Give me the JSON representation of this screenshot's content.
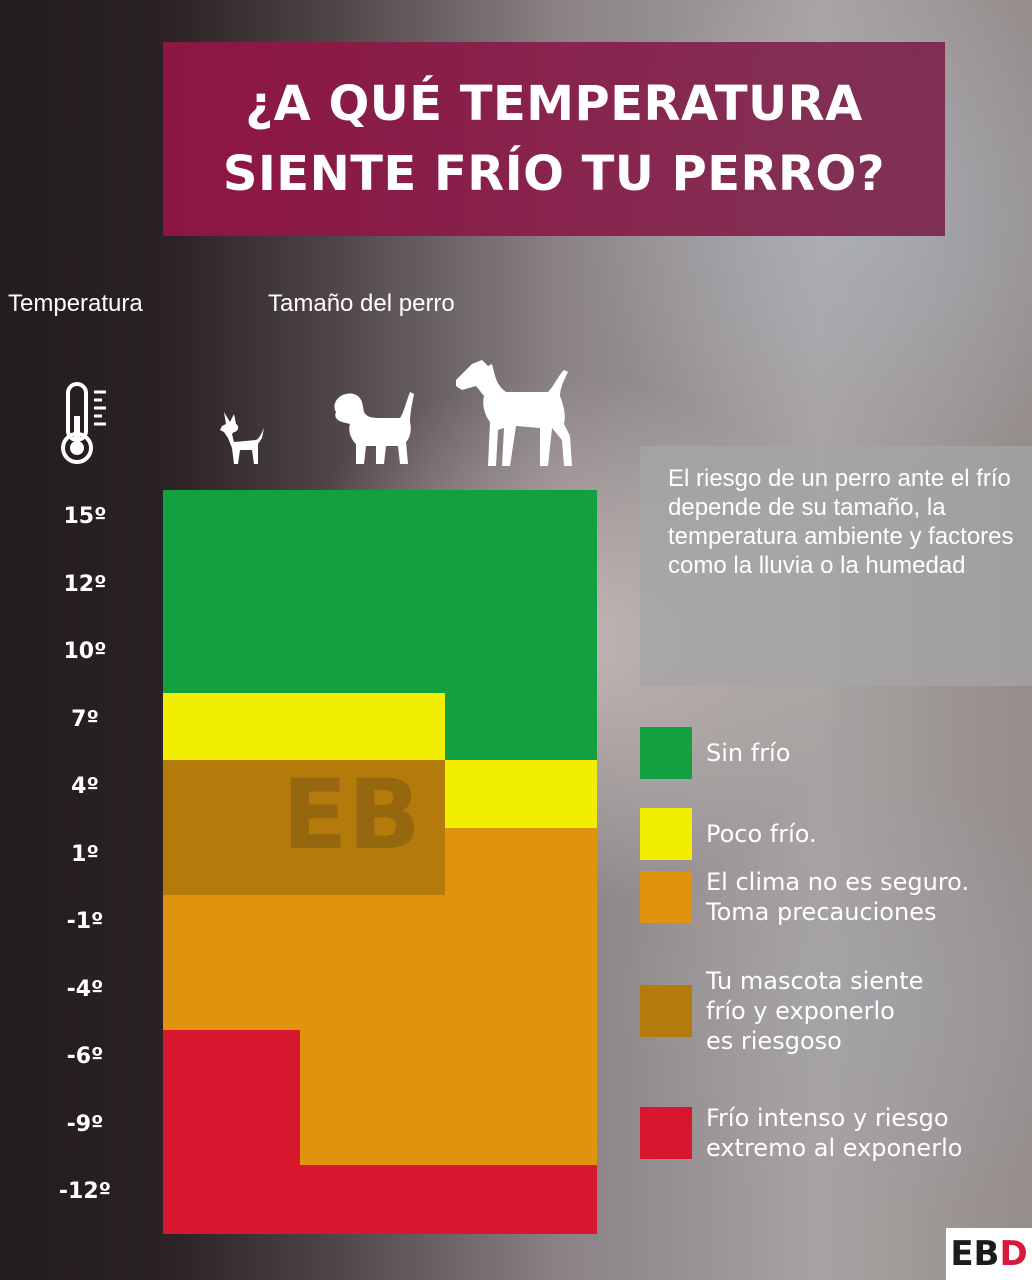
{
  "title": "¿A QUÉ TEMPERATURA\nSIENTE FRÍO TU PERRO?",
  "headers": {
    "temperature": "Temperatura",
    "dog_size": "Tamaño del perro"
  },
  "icons": {
    "thermometer": "thermometer-icon",
    "small_dog": "small-dog-icon",
    "medium_dog": "medium-dog-icon",
    "large_dog": "large-dog-icon"
  },
  "temperature_ticks": [
    "15º",
    "12º",
    "10º",
    "7º",
    "4º",
    "1º",
    "-1º",
    "-4º",
    "-6º",
    "-9º",
    "-12º"
  ],
  "risk_levels": [
    {
      "id": "sin-frio",
      "label": "Sin frío",
      "color": "#13a040"
    },
    {
      "id": "poco-frio",
      "label": "Poco frío.",
      "color": "#f2ee00"
    },
    {
      "id": "no-seguro",
      "label": "El clima no es seguro.\nToma precauciones",
      "color": "#e0940e"
    },
    {
      "id": "siente-frio",
      "label": "Tu mascota siente\nfrío y exponerlo\nes riesgoso",
      "color": "#b57a0c"
    },
    {
      "id": "frio-intenso",
      "label": "Frío intenso y riesgo\nextremo al exponerlo",
      "color": "#d6172e"
    }
  ],
  "grid": {
    "columns": [
      "small",
      "medium",
      "large"
    ],
    "rows": [
      [
        "sin-frio",
        "sin-frio",
        "sin-frio"
      ],
      [
        "sin-frio",
        "sin-frio",
        "sin-frio"
      ],
      [
        "sin-frio",
        "sin-frio",
        "sin-frio"
      ],
      [
        "poco-frio",
        "poco-frio",
        "sin-frio"
      ],
      [
        "siente-frio",
        "siente-frio",
        "poco-frio"
      ],
      [
        "siente-frio",
        "siente-frio",
        "no-seguro"
      ],
      [
        "no-seguro",
        "no-seguro",
        "no-seguro"
      ],
      [
        "no-seguro",
        "no-seguro",
        "no-seguro"
      ],
      [
        "frio-intenso",
        "no-seguro",
        "no-seguro"
      ],
      [
        "frio-intenso",
        "no-seguro",
        "no-seguro"
      ],
      [
        "frio-intenso",
        "frio-intenso",
        "frio-intenso"
      ]
    ]
  },
  "info_text": "El riesgo de un perro ante el frío depende de su tamaño, la temperatura ambiente y factores como la lluvia o la humedad",
  "watermark": "EB",
  "logo": {
    "main": "EB",
    "accent": "D"
  }
}
